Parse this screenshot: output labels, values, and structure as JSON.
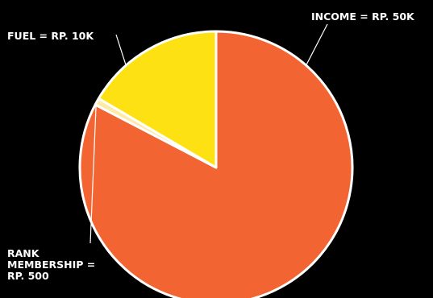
{
  "chart_data": {
    "type": "pie",
    "slices": [
      {
        "label": "INCOME = RP. 50K",
        "value": 50000,
        "color": "#f26532"
      },
      {
        "label": "RANK MEMBERSHIP = RP. 500",
        "label_lines": [
          "RANK",
          "MEMBERSHIP =",
          "RP. 500"
        ],
        "value": 500,
        "color": "#fde9a8"
      },
      {
        "label": "FUEL = RP. 10K",
        "value": 10000,
        "color": "#fde112"
      }
    ],
    "colors": {
      "background": "#000000",
      "slice_border": "#ffffff",
      "label_text": "#ffffff"
    },
    "legend": "none"
  }
}
